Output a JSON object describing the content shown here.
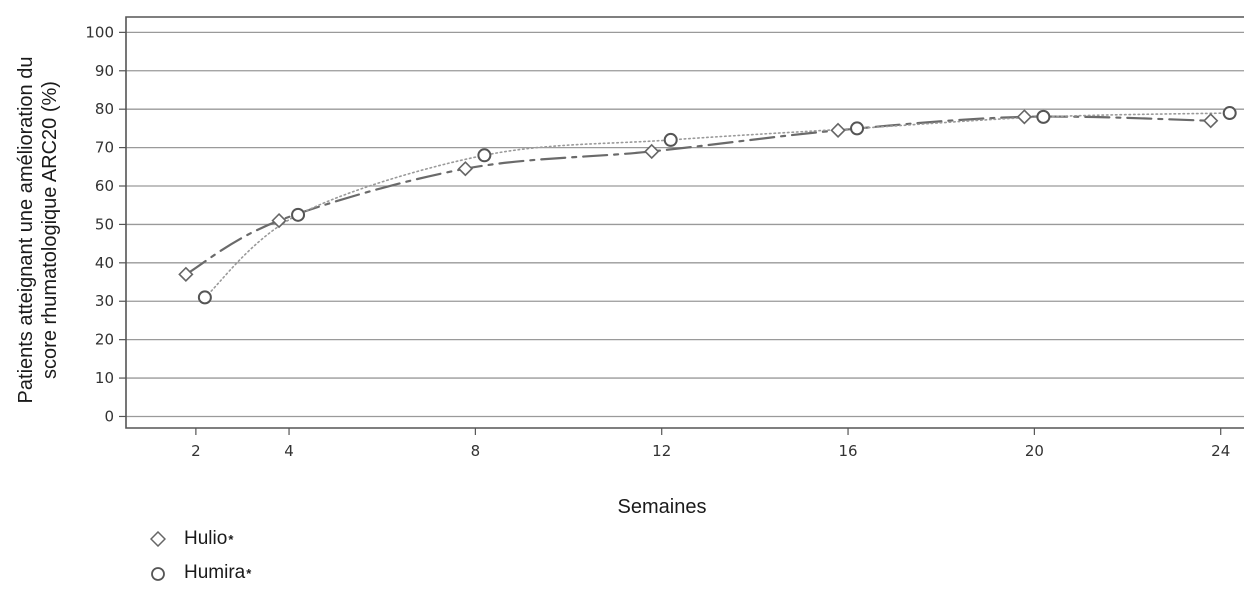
{
  "chart_data": {
    "type": "line",
    "xlabel": "Semaines",
    "ylabel_lines": [
      "Patients atteignant une amélioration du",
      "score rhumatologique ARC20 (%)"
    ],
    "x_ticks": [
      2,
      4,
      8,
      12,
      16,
      20,
      24
    ],
    "y_ticks": [
      0,
      10,
      20,
      30,
      40,
      50,
      60,
      70,
      80,
      90,
      100
    ],
    "xlim": [
      0.5,
      24.5
    ],
    "ylim": [
      -3,
      104
    ],
    "grid": true,
    "legend_position": "bottom-left",
    "series": [
      {
        "name": "Hulio",
        "marker": "diamond",
        "line_style": "dash-dot",
        "x": [
          2,
          4,
          8,
          12,
          16,
          20,
          24
        ],
        "values": [
          37,
          51,
          64.5,
          69,
          74.5,
          78,
          77
        ]
      },
      {
        "name": "Humira",
        "marker": "circle",
        "line_style": "dotted",
        "x": [
          2,
          4,
          8,
          12,
          16,
          20,
          24
        ],
        "values": [
          31,
          52.5,
          68,
          72,
          75,
          78,
          79
        ]
      }
    ]
  },
  "legend": [
    {
      "label": "Hulio",
      "sup": "*"
    },
    {
      "label": "Humira",
      "sup": "*"
    }
  ]
}
